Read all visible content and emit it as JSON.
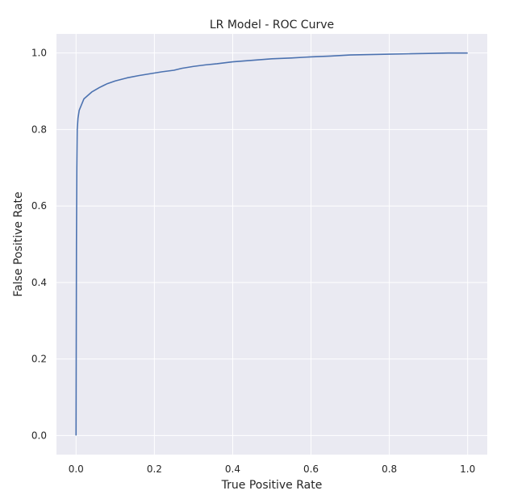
{
  "chart_data": {
    "type": "line",
    "title": "LR Model - ROC Curve",
    "xlabel": "True Positive Rate",
    "ylabel": "False Positive Rate",
    "xlim": [
      -0.05,
      1.05
    ],
    "ylim": [
      -0.05,
      1.05
    ],
    "xticks": [
      0.0,
      0.2,
      0.4,
      0.6,
      0.8,
      1.0
    ],
    "yticks": [
      0.0,
      0.2,
      0.4,
      0.6,
      0.8,
      1.0
    ],
    "xtick_labels": [
      "0.0",
      "0.2",
      "0.4",
      "0.6",
      "0.8",
      "1.0"
    ],
    "ytick_labels": [
      "0.0",
      "0.2",
      "0.4",
      "0.6",
      "0.8",
      "1.0"
    ],
    "grid": true,
    "legend": "none",
    "colors": {
      "background": "#eaeaf2",
      "grid": "#ffffff",
      "line": "#4c72b0"
    },
    "series": [
      {
        "x": [
          0.0,
          0.001,
          0.002,
          0.003,
          0.005,
          0.008,
          0.012,
          0.02,
          0.04,
          0.06,
          0.08,
          0.1,
          0.13,
          0.16,
          0.19,
          0.22,
          0.25,
          0.27,
          0.3,
          0.33,
          0.36,
          0.4,
          0.45,
          0.5,
          0.55,
          0.6,
          0.65,
          0.7,
          0.75,
          0.8,
          0.85,
          0.9,
          0.95,
          1.0
        ],
        "y": [
          0.0,
          0.5,
          0.7,
          0.8,
          0.83,
          0.85,
          0.86,
          0.88,
          0.898,
          0.91,
          0.92,
          0.927,
          0.935,
          0.941,
          0.946,
          0.951,
          0.955,
          0.96,
          0.965,
          0.969,
          0.972,
          0.977,
          0.981,
          0.985,
          0.987,
          0.99,
          0.992,
          0.995,
          0.996,
          0.997,
          0.998,
          0.999,
          1.0,
          1.0
        ]
      }
    ]
  }
}
